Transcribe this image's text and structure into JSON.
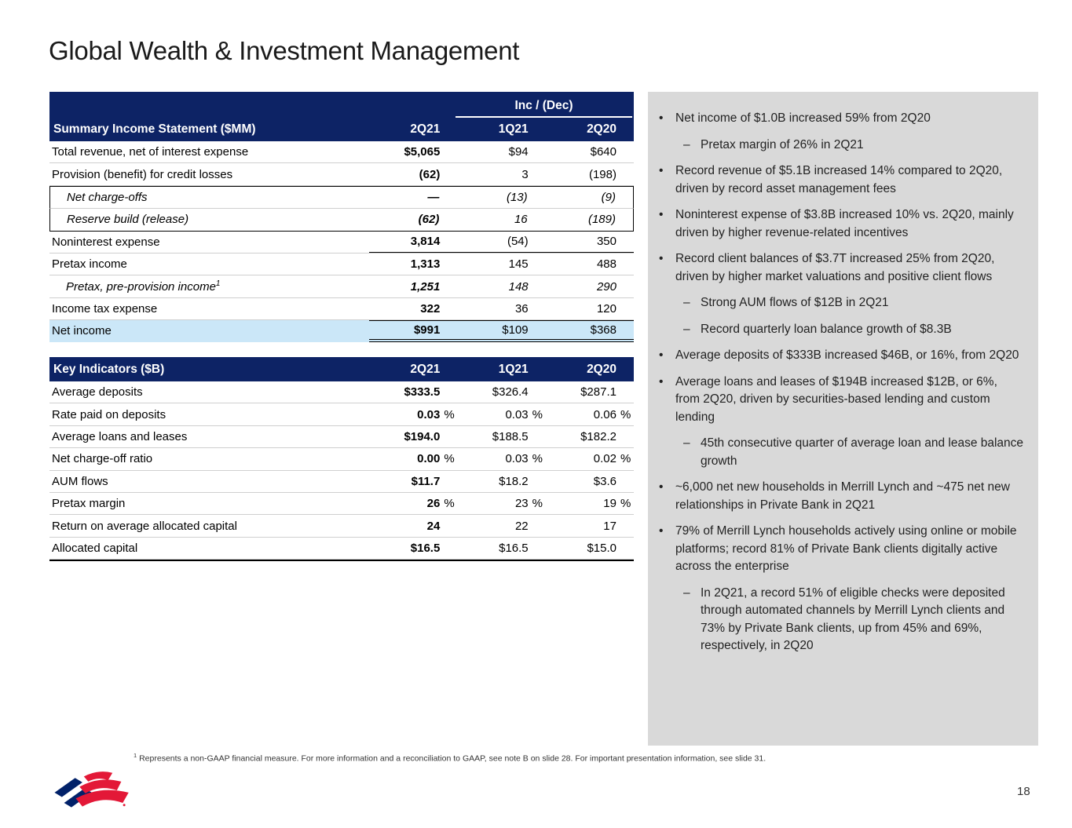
{
  "page": {
    "title": "Global Wealth & Investment Management",
    "page_number": "18",
    "footnote_sup": "1",
    "footnote": "Represents a non-GAAP financial measure. For more information and a reconciliation to GAAP, see note B on slide 28. For important presentation information, see slide 31."
  },
  "colors": {
    "header_navy": "#0d2365",
    "net_income_highlight": "#cbe7f8",
    "panel_gray": "#d9d9d9",
    "brand_navy": "#012169",
    "brand_red": "#e31837"
  },
  "income_table": {
    "span_header": "Inc / (Dec)",
    "title": "Summary Income Statement ($MM)",
    "columns": [
      "2Q21",
      "1Q21",
      "2Q20"
    ],
    "rows": [
      {
        "label": "Total revenue, net of interest expense",
        "cells": [
          {
            "v": "$5,065"
          },
          {
            "v": "$94"
          },
          {
            "v": "$640"
          }
        ]
      },
      {
        "label": "Provision (benefit) for credit losses",
        "cells": [
          {
            "v": "(62)"
          },
          {
            "v": "3"
          },
          {
            "v": "(198)"
          }
        ]
      },
      {
        "label": "Net charge-offs",
        "em": true,
        "ind": true,
        "box": "top",
        "cells": [
          {
            "v": "—"
          },
          {
            "v": "(13)"
          },
          {
            "v": "(9)"
          }
        ]
      },
      {
        "label": "Reserve build (release)",
        "em": true,
        "ind": true,
        "box": "bottom",
        "cells": [
          {
            "v": "(62)"
          },
          {
            "v": "16"
          },
          {
            "v": "(189)"
          }
        ]
      },
      {
        "label": "Noninterest expense",
        "rule": "under",
        "cells": [
          {
            "v": "3,814"
          },
          {
            "v": "(54)"
          },
          {
            "v": "350"
          }
        ]
      },
      {
        "label": "Pretax income",
        "cells": [
          {
            "v": "1,313"
          },
          {
            "v": "145"
          },
          {
            "v": "488"
          }
        ]
      },
      {
        "label": "Pretax, pre-provision income",
        "sup": "1",
        "em": true,
        "ind": true,
        "cells": [
          {
            "v": "1,251"
          },
          {
            "v": "148"
          },
          {
            "v": "290"
          }
        ]
      },
      {
        "label": "Income tax expense",
        "cells": [
          {
            "v": "322"
          },
          {
            "v": "36"
          },
          {
            "v": "120"
          }
        ]
      },
      {
        "label": "Net income",
        "hl": true,
        "rule": "total",
        "cells": [
          {
            "v": "$991"
          },
          {
            "v": "$109"
          },
          {
            "v": "$368"
          }
        ]
      }
    ]
  },
  "key_table": {
    "title": "Key Indicators ($B)",
    "columns": [
      "2Q21",
      "1Q21",
      "2Q20"
    ],
    "rows": [
      {
        "label": "Average deposits",
        "cells": [
          {
            "v": "$333.5"
          },
          {
            "v": "$326.4"
          },
          {
            "v": "$287.1"
          }
        ]
      },
      {
        "label": "Rate paid on deposits",
        "cells": [
          {
            "v": "0.03",
            "u": "%"
          },
          {
            "v": "0.03",
            "u": "%"
          },
          {
            "v": "0.06",
            "u": "%"
          }
        ]
      },
      {
        "label": "Average loans and leases",
        "cells": [
          {
            "v": "$194.0"
          },
          {
            "v": "$188.5"
          },
          {
            "v": "$182.2"
          }
        ]
      },
      {
        "label": "Net charge-off ratio",
        "cells": [
          {
            "v": "0.00",
            "u": "%"
          },
          {
            "v": "0.03",
            "u": "%"
          },
          {
            "v": "0.02",
            "u": "%"
          }
        ]
      },
      {
        "label": "AUM flows",
        "cells": [
          {
            "v": "$11.7"
          },
          {
            "v": "$18.2"
          },
          {
            "v": "$3.6"
          }
        ]
      },
      {
        "label": "Pretax margin",
        "cells": [
          {
            "v": "26",
            "u": "%"
          },
          {
            "v": "23",
            "u": "%"
          },
          {
            "v": "19",
            "u": "%"
          }
        ]
      },
      {
        "label": "Return on average allocated capital",
        "cells": [
          {
            "v": "24"
          },
          {
            "v": "22"
          },
          {
            "v": "17"
          }
        ]
      },
      {
        "label": "Allocated capital",
        "cells": [
          {
            "v": "$16.5"
          },
          {
            "v": "$16.5"
          },
          {
            "v": "$15.0"
          }
        ]
      }
    ]
  },
  "highlights": {
    "bullet_marker": "•",
    "sub_marker": "–",
    "bullets": [
      {
        "level": 0,
        "text": "Net income of $1.0B increased 59% from 2Q20"
      },
      {
        "level": 1,
        "text": "Pretax margin of 26% in 2Q21"
      },
      {
        "level": 0,
        "text": "Record revenue of $5.1B increased 14% compared to 2Q20, driven by record asset management fees"
      },
      {
        "level": 0,
        "text": "Noninterest expense of $3.8B increased 10% vs. 2Q20, mainly driven by higher revenue-related incentives"
      },
      {
        "level": 0,
        "text": "Record client balances of $3.7T increased 25% from 2Q20, driven by higher market valuations and positive client flows"
      },
      {
        "level": 1,
        "text": "Strong AUM flows of $12B in 2Q21"
      },
      {
        "level": 1,
        "text": "Record quarterly loan balance growth of $8.3B"
      },
      {
        "level": 0,
        "text": "Average deposits of $333B increased $46B, or 16%, from 2Q20"
      },
      {
        "level": 0,
        "text": "Average loans and leases of $194B increased $12B, or 6%, from 2Q20, driven by securities-based lending and custom lending"
      },
      {
        "level": 1,
        "text": "45th consecutive quarter of average loan and lease balance growth"
      },
      {
        "level": 0,
        "text": "~6,000 net new households in Merrill Lynch and ~475 net new relationships in Private Bank in 2Q21"
      },
      {
        "level": 0,
        "text": "79% of Merrill Lynch households actively using online or mobile platforms; record 81% of Private Bank clients digitally active across the enterprise"
      },
      {
        "level": 1,
        "text": "In 2Q21, a record 51% of eligible checks were deposited through automated channels by Merrill Lynch clients and 73% by Private Bank clients, up from 45% and 69%, respectively, in 2Q20"
      }
    ]
  }
}
